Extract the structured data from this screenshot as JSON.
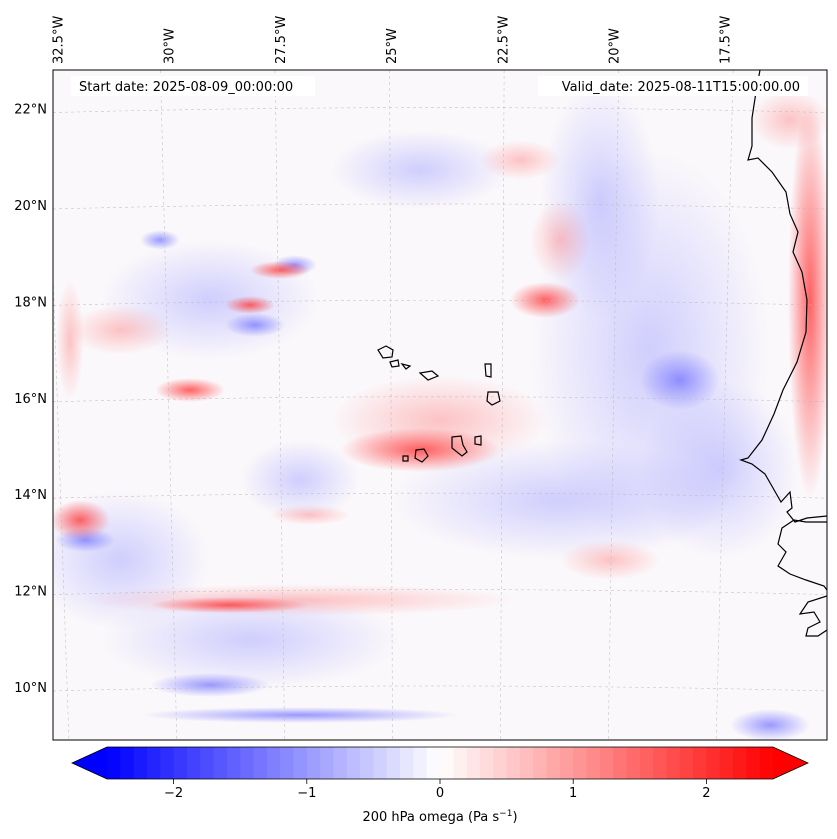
{
  "map": {
    "start_date_label": "Start date: 2025-08-09_00:00:00",
    "valid_date_label": "Valid_date: 2025-08-11T15:00:00.00",
    "lon_labels": [
      "32.5°W",
      "30°W",
      "27.5°W",
      "25°W",
      "22.5°W",
      "20°W",
      "17.5°W"
    ],
    "lat_labels": [
      "22°N",
      "20°N",
      "18°N",
      "16°N",
      "14°N",
      "12°N",
      "10°N"
    ],
    "lon_values": [
      -32.5,
      -30,
      -27.5,
      -25,
      -22.5,
      -20,
      -17.5
    ],
    "lat_values": [
      22,
      20,
      18,
      16,
      14,
      12,
      10
    ],
    "extent": {
      "lon_min": -32.6,
      "lon_max": -15.2,
      "lat_min": 8.9,
      "lat_max": 22.8
    }
  },
  "colorbar": {
    "label": "200 hPa omega (Pa s",
    "label_exponent": "−1",
    "label_suffix": ")",
    "ticks": [
      "−2",
      "−1",
      "0",
      "1",
      "2"
    ],
    "tick_values": [
      -2,
      -1,
      0,
      1,
      2
    ],
    "vmin": -2.5,
    "vmax": 2.5,
    "colormap": "bwr",
    "color_min": "#0000ff",
    "color_mid": "#ffffff",
    "color_max": "#ff0000",
    "extend": "both"
  }
}
